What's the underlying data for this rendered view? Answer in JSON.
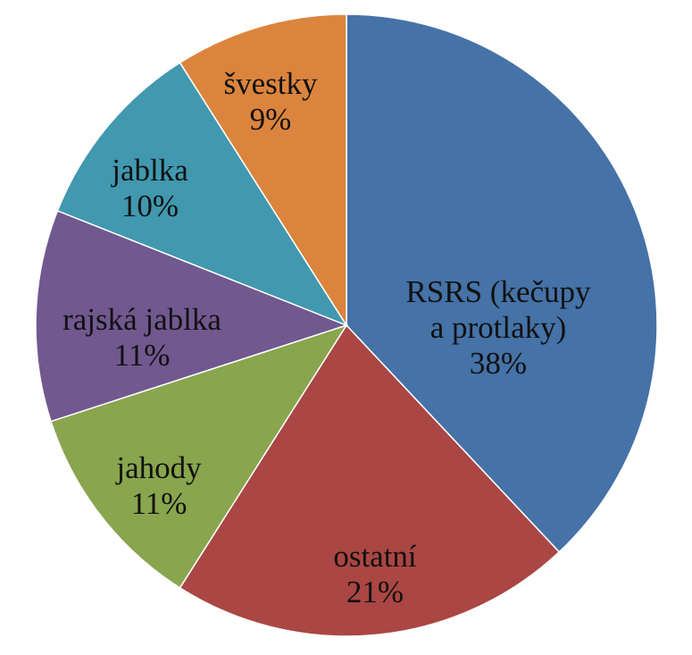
{
  "chart_data": {
    "type": "pie",
    "title": "",
    "start": "12 o'clock",
    "direction": "clockwise",
    "legend": "none",
    "slices": [
      {
        "label": "RSRS (kečupy\na protlaky)",
        "percent_label": "38%",
        "value": 38,
        "color": "#4572A7"
      },
      {
        "label": "ostatní",
        "percent_label": "21%",
        "value": 21,
        "color": "#AA4643"
      },
      {
        "label": "jahody",
        "percent_label": "11%",
        "value": 11,
        "color": "#89A54E"
      },
      {
        "label": "rajská jablka",
        "percent_label": "11%",
        "value": 11,
        "color": "#71588F"
      },
      {
        "label": "jablka",
        "percent_label": "10%",
        "value": 10,
        "color": "#4198AF"
      },
      {
        "label": "švestky",
        "percent_label": "9%",
        "value": 9,
        "color": "#DB843D"
      }
    ]
  }
}
